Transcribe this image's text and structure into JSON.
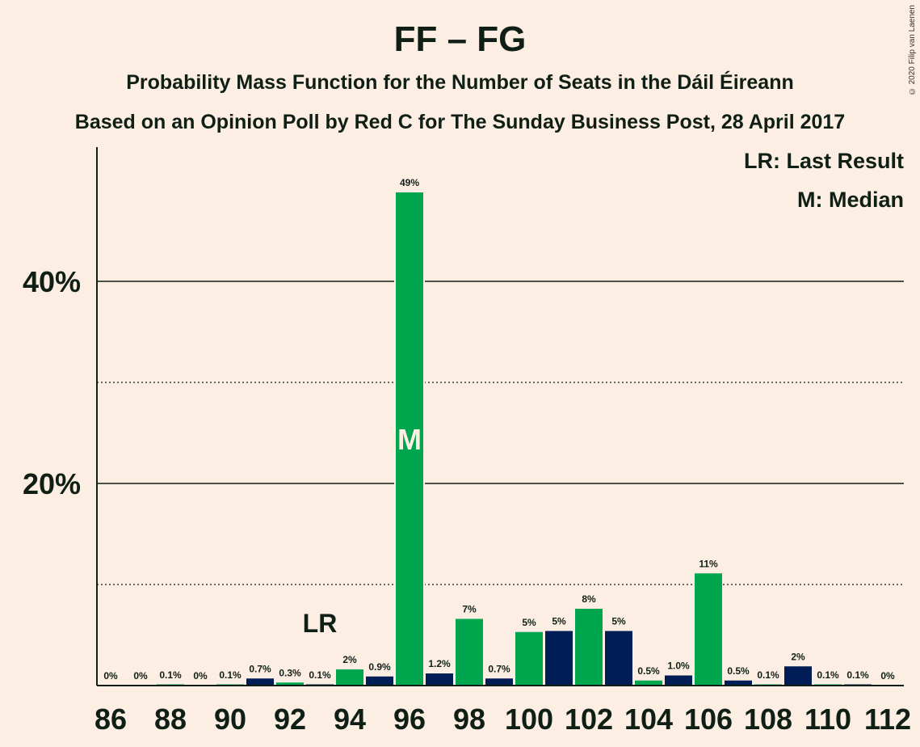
{
  "title": "FF – FG",
  "subtitle": "Probability Mass Function for the Number of Seats in the Dáil Éireann",
  "subtitle2": "Based on an Opinion Poll by Red C for The Sunday Business Post, 28 April 2017",
  "copyright": "© 2020 Filip van Laenen",
  "legend": {
    "last_result": "LR: Last Result",
    "median": "M: Median"
  },
  "markers": {
    "last_result_label": "LR",
    "last_result_seat": 93,
    "median_label": "M",
    "median_seat": 96
  },
  "colors": {
    "background": "#fdeee3",
    "green": "#00a64e",
    "navy": "#001d55",
    "text": "#0f1f16"
  },
  "chart_data": {
    "type": "bar",
    "x": [
      86,
      87,
      88,
      89,
      90,
      91,
      92,
      93,
      94,
      95,
      96,
      97,
      98,
      99,
      100,
      101,
      102,
      103,
      104,
      105,
      106,
      107,
      108,
      109,
      110,
      111,
      112
    ],
    "values": [
      0,
      0,
      0.1,
      0,
      0.1,
      0.7,
      0.3,
      0.1,
      1.6,
      0.9,
      48.8,
      1.2,
      6.6,
      0.7,
      5.3,
      5.4,
      7.6,
      5.4,
      0.5,
      1.0,
      11.1,
      0.5,
      0.1,
      1.9,
      0.1,
      0.1,
      0
    ],
    "labels": [
      "0%",
      "0%",
      "0.1%",
      "0%",
      "0.1%",
      "0.7%",
      "0.3%",
      "0.1%",
      "2%",
      "0.9%",
      "49%",
      "1.2%",
      "7%",
      "0.7%",
      "5%",
      "5%",
      "8%",
      "5%",
      "0.5%",
      "1.0%",
      "11%",
      "0.5%",
      "0.1%",
      "2%",
      "0.1%",
      "0.1%",
      "0%"
    ],
    "colors": [
      "green",
      "navy",
      "green",
      "navy",
      "green",
      "navy",
      "green",
      "navy",
      "green",
      "navy",
      "green",
      "navy",
      "green",
      "navy",
      "green",
      "navy",
      "green",
      "navy",
      "green",
      "navy",
      "green",
      "navy",
      "green",
      "navy",
      "green",
      "navy",
      "green"
    ],
    "x_tick_labels": [
      "86",
      "88",
      "90",
      "92",
      "94",
      "96",
      "98",
      "100",
      "102",
      "104",
      "106",
      "108",
      "110",
      "112"
    ],
    "y_tick_labels": [
      "20%",
      "40%"
    ],
    "ylim": [
      0,
      53.3
    ],
    "solid_gridlines": [
      20,
      40
    ],
    "dotted_gridlines": [
      10,
      30
    ],
    "legend_position": "top-right"
  }
}
